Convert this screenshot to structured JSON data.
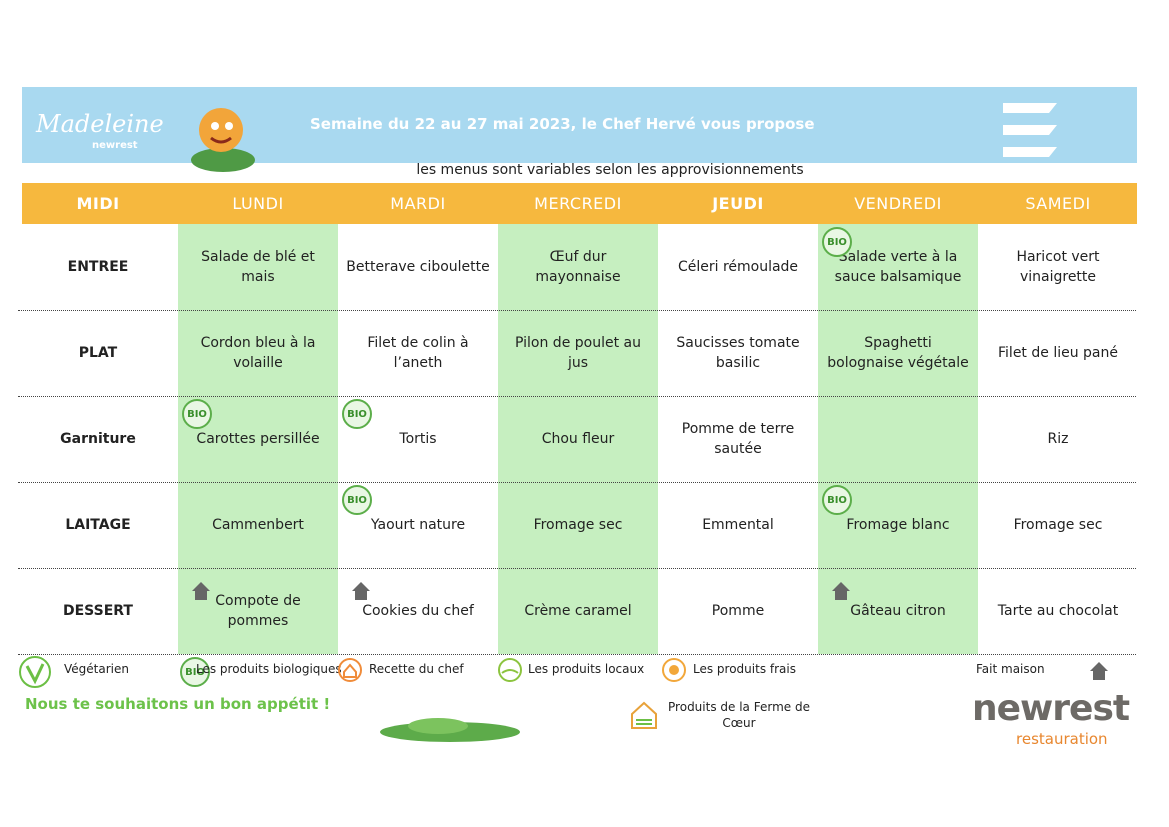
{
  "header": {
    "logo": "Madeleine",
    "logo_sub": "newrest",
    "title": "Semaine du 22 au 27 mai 2023, le Chef Hervé vous propose",
    "subtitle": "les menus sont variables selon les approvisionnements"
  },
  "table": {
    "columns": [
      "MIDI",
      "LUNDI",
      "MARDI",
      "MERCREDI",
      "JEUDI",
      "VENDREDI",
      "SAMEDI"
    ],
    "bio_badge": "BIO",
    "rows": [
      {
        "label": "ENTREE",
        "cells": [
          {
            "text": "Salade de blé et mais"
          },
          {
            "text": "Betterave ciboulette"
          },
          {
            "text": "Œuf dur mayonnaise"
          },
          {
            "text": "Céleri rémoulade"
          },
          {
            "text": "Salade verte à la sauce balsamique",
            "badge": "bio"
          },
          {
            "text": "Haricot vert vinaigrette"
          }
        ]
      },
      {
        "label": "PLAT",
        "cells": [
          {
            "text": "Cordon bleu à la volaille"
          },
          {
            "text": "Filet de colin à l’aneth"
          },
          {
            "text": "Pilon de poulet au jus"
          },
          {
            "text": "Saucisses tomate basilic"
          },
          {
            "text": "Spaghetti bolognaise végétale"
          },
          {
            "text": "Filet de lieu pané"
          }
        ]
      },
      {
        "label": "Garniture",
        "cells": [
          {
            "text": "Carottes persillée",
            "badge": "bio"
          },
          {
            "text": "Tortis",
            "badge": "bio"
          },
          {
            "text": "Chou fleur"
          },
          {
            "text": "Pomme de terre sautée"
          },
          null,
          {
            "text": "Riz"
          }
        ]
      },
      {
        "label": "LAITAGE",
        "cells": [
          {
            "text": "Cammenbert"
          },
          {
            "text": "Yaourt nature",
            "badge": "bio"
          },
          {
            "text": "Fromage sec"
          },
          {
            "text": "Emmental"
          },
          {
            "text": "Fromage blanc",
            "badge": "bio"
          },
          {
            "text": "Fromage sec"
          }
        ]
      },
      {
        "label": "DESSERT",
        "cells": [
          {
            "text": "Compote de pommes",
            "badge": "home"
          },
          {
            "text": "Cookies du chef",
            "badge": "home"
          },
          {
            "text": "Crème caramel"
          },
          {
            "text": "Pomme"
          },
          {
            "text": "Gâteau citron",
            "badge": "home"
          },
          {
            "text": "Tarte au chocolat"
          }
        ]
      }
    ]
  },
  "legend": {
    "vegetarian": "Végétarien",
    "organic": "Les produits biologiques",
    "chef": "Recette du chef",
    "local": "Les produits locaux",
    "fresh": "Les produits frais",
    "farm": "Produits de la Ferme de Cœur",
    "homemade": "Fait maison"
  },
  "footer": {
    "wish": "Nous te souhaitons un bon appétit !",
    "brand": "newrest",
    "brand_sub": "restauration"
  }
}
